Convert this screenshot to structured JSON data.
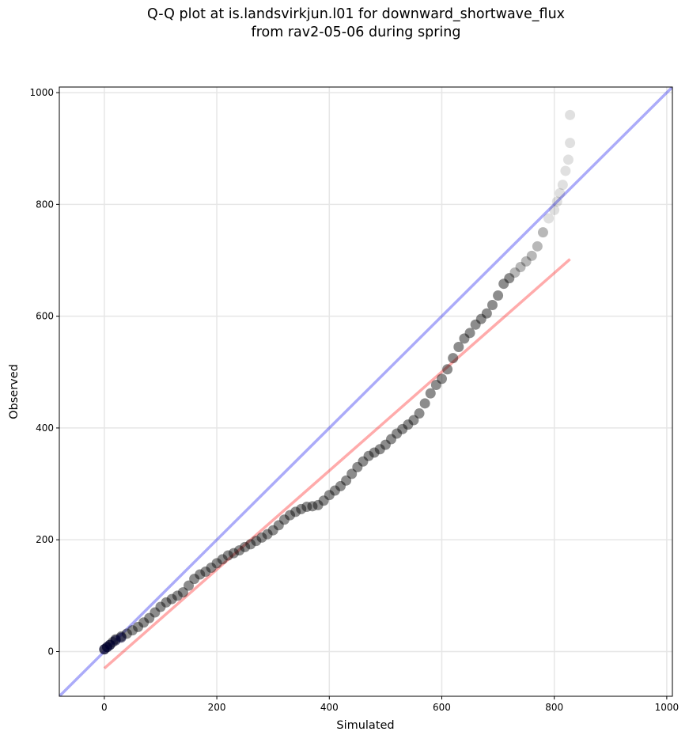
{
  "chart_data": {
    "type": "scatter",
    "title_line1": "Q-Q plot at is.landsvirkjun.l01 for downward_shortwave_flux",
    "title_line2": "from rav2-05-06 during spring",
    "xlabel": "Simulated",
    "ylabel": "Observed",
    "xlim": [
      -80,
      1010
    ],
    "ylim": [
      -80,
      1010
    ],
    "xticks": [
      0,
      200,
      400,
      600,
      800,
      1000
    ],
    "yticks": [
      0,
      200,
      400,
      600,
      800,
      1000
    ],
    "grid": true,
    "reference_line": {
      "x": [
        -80,
        1010
      ],
      "y": [
        -80,
        1010
      ],
      "color": "#0000ee",
      "opacity": 0.33
    },
    "fit_line": {
      "x": [
        0,
        828
      ],
      "y": [
        -30,
        702
      ],
      "color": "#ff0000",
      "opacity": 0.33
    },
    "series": [
      {
        "color": "#000000",
        "x": [
          0,
          5,
          10,
          15,
          20,
          30,
          40,
          50,
          60,
          70,
          80,
          90,
          100,
          110,
          120,
          130,
          140,
          150,
          160,
          170,
          180,
          190,
          200,
          210,
          220,
          230,
          240,
          250,
          260,
          270,
          280,
          290,
          300,
          310,
          320,
          330,
          340,
          350,
          360,
          370,
          380,
          390,
          400,
          410,
          420,
          430,
          440,
          450,
          460,
          470,
          480,
          490,
          500,
          510,
          520,
          530,
          540,
          550,
          560,
          570,
          580,
          590,
          600,
          610,
          620,
          630,
          640,
          650,
          660,
          670,
          680,
          690,
          700,
          710,
          720,
          730,
          740,
          750,
          760,
          770,
          780,
          790,
          800,
          805,
          810,
          815,
          820,
          825,
          828
        ],
        "y": [
          4,
          8,
          12,
          17,
          22,
          27,
          32,
          38,
          44,
          52,
          60,
          70,
          80,
          88,
          94,
          100,
          106,
          118,
          130,
          138,
          143,
          150,
          158,
          165,
          172,
          176,
          181,
          187,
          192,
          198,
          204,
          210,
          217,
          226,
          236,
          244,
          250,
          255,
          259,
          260,
          262,
          270,
          280,
          288,
          296,
          306,
          318,
          330,
          340,
          350,
          356,
          362,
          370,
          380,
          390,
          398,
          406,
          414,
          426,
          444,
          462,
          477,
          488,
          505,
          525,
          545,
          560,
          570,
          585,
          595,
          605,
          620,
          637,
          658,
          668,
          678,
          688,
          698,
          708,
          725,
          750,
          775,
          790,
          805,
          820,
          835,
          860,
          880,
          910
        ]
      },
      {
        "color": "#000000",
        "x": [
          828
        ],
        "y": [
          960
        ]
      }
    ]
  }
}
